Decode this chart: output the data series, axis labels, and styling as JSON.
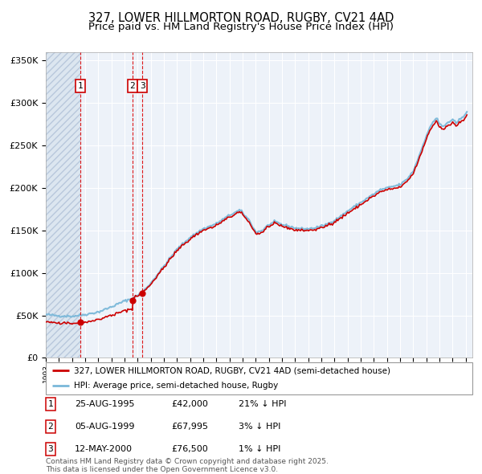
{
  "title1": "327, LOWER HILLMORTON ROAD, RUGBY, CV21 4AD",
  "title2": "Price paid vs. HM Land Registry's House Price Index (HPI)",
  "ylabel_ticks": [
    "£0",
    "£50K",
    "£100K",
    "£150K",
    "£200K",
    "£250K",
    "£300K",
    "£350K"
  ],
  "ytick_vals": [
    0,
    50000,
    100000,
    150000,
    200000,
    250000,
    300000,
    350000
  ],
  "ylim": [
    0,
    360000
  ],
  "xlim_start": 1993.0,
  "xlim_end": 2025.5,
  "hpi_color": "#7ab8d9",
  "price_color": "#cc0000",
  "dot_color": "#cc0000",
  "dashed_line_color": "#dd0000",
  "purchases": [
    {
      "date_year": 1995.648,
      "price": 42000,
      "label": "1"
    },
    {
      "date_year": 1999.589,
      "price": 67995,
      "label": "2"
    },
    {
      "date_year": 2000.36,
      "price": 76500,
      "label": "3"
    }
  ],
  "purchase_table": [
    {
      "num": "1",
      "date": "25-AUG-1995",
      "price": "£42,000",
      "hpi": "21% ↓ HPI"
    },
    {
      "num": "2",
      "date": "05-AUG-1999",
      "price": "£67,995",
      "hpi": "3% ↓ HPI"
    },
    {
      "num": "3",
      "date": "12-MAY-2000",
      "price": "£76,500",
      "hpi": "1% ↓ HPI"
    }
  ],
  "legend_line1": "327, LOWER HILLMORTON ROAD, RUGBY, CV21 4AD (semi-detached house)",
  "legend_line2": "HPI: Average price, semi-detached house, Rugby",
  "footnote1": "Contains HM Land Registry data © Crown copyright and database right 2025.",
  "footnote2": "This data is licensed under the Open Government Licence v3.0.",
  "bg_color": "#edf2f9",
  "grid_color": "#ffffff",
  "title_fontsize": 10.5,
  "subtitle_fontsize": 9.5
}
